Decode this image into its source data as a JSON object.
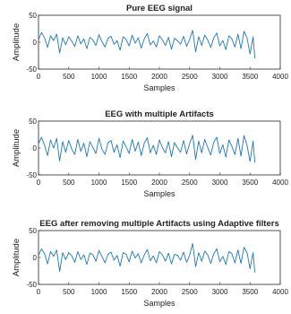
{
  "chart_data": [
    {
      "type": "line",
      "title": "Pure EEG signal",
      "xlabel": "Samples",
      "ylabel": "Amplitude",
      "xlim": [
        0,
        4000
      ],
      "ylim": [
        -50,
        50
      ],
      "xticks": [
        "0",
        "500",
        "1000",
        "1500",
        "2000",
        "2500",
        "3000",
        "3500",
        "4000"
      ],
      "yticks": [
        "50",
        "0",
        "-50"
      ],
      "grid": false,
      "series": [
        {
          "color": "#1f77b4",
          "x": [
            0,
            50,
            100,
            150,
            200,
            250,
            300,
            350,
            400,
            450,
            500,
            550,
            600,
            650,
            700,
            750,
            800,
            850,
            900,
            950,
            1000,
            1050,
            1100,
            1150,
            1200,
            1250,
            1300,
            1350,
            1400,
            1450,
            1500,
            1550,
            1600,
            1650,
            1700,
            1750,
            1800,
            1850,
            1900,
            1950,
            2000,
            2050,
            2100,
            2150,
            2200,
            2250,
            2300,
            2350,
            2400,
            2450,
            2500,
            2550,
            2600,
            2650,
            2700,
            2750,
            2800,
            2850,
            2900,
            2950,
            3000,
            3050,
            3100,
            3150,
            3200,
            3250,
            3300,
            3350,
            3400,
            3450,
            3500,
            3550,
            3580
          ],
          "y": [
            5,
            18,
            8,
            -10,
            12,
            3,
            15,
            -20,
            8,
            -5,
            10,
            2,
            -8,
            12,
            -3,
            6,
            -12,
            9,
            4,
            -6,
            14,
            1,
            -9,
            7,
            11,
            -4,
            3,
            -15,
            10,
            5,
            -7,
            13,
            -2,
            8,
            -11,
            6,
            16,
            -5,
            2,
            -9,
            12,
            4,
            -6,
            9,
            -13,
            7,
            3,
            -4,
            11,
            -8,
            5,
            22,
            -18,
            10,
            -6,
            13,
            4,
            -10,
            8,
            17,
            -7,
            3,
            -14,
            12,
            6,
            -9,
            15,
            -12,
            20,
            8,
            -22,
            10,
            -30
          ]
        }
      ]
    },
    {
      "type": "line",
      "title": "EEG with multiple Artifacts",
      "xlabel": "Samples",
      "ylabel": "Amplitude",
      "xlim": [
        0,
        4000
      ],
      "ylim": [
        -50,
        50
      ],
      "xticks": [
        "0",
        "500",
        "1000",
        "1500",
        "2000",
        "2500",
        "3000",
        "3500",
        "4000"
      ],
      "yticks": [
        "50",
        "0",
        "-50"
      ],
      "grid": false,
      "series": [
        {
          "color": "#1f77b4",
          "x": [
            0,
            50,
            100,
            150,
            200,
            250,
            300,
            350,
            400,
            450,
            500,
            550,
            600,
            650,
            700,
            750,
            800,
            850,
            900,
            950,
            1000,
            1050,
            1100,
            1150,
            1200,
            1250,
            1300,
            1350,
            1400,
            1450,
            1500,
            1550,
            1600,
            1650,
            1700,
            1750,
            1800,
            1850,
            1900,
            1950,
            2000,
            2050,
            2100,
            2150,
            2200,
            2250,
            2300,
            2350,
            2400,
            2450,
            2500,
            2550,
            2600,
            2650,
            2700,
            2750,
            2800,
            2850,
            2900,
            2950,
            3000,
            3050,
            3100,
            3150,
            3200,
            3250,
            3300,
            3350,
            3400,
            3450,
            3500,
            3550,
            3580
          ],
          "y": [
            8,
            20,
            5,
            -14,
            15,
            0,
            18,
            -24,
            12,
            -8,
            14,
            -2,
            -12,
            16,
            -6,
            9,
            -16,
            12,
            1,
            -10,
            18,
            -2,
            -12,
            10,
            14,
            -8,
            6,
            -18,
            13,
            2,
            -10,
            16,
            -6,
            11,
            -14,
            9,
            19,
            -9,
            5,
            -12,
            15,
            1,
            -9,
            12,
            -16,
            10,
            0,
            -8,
            14,
            -11,
            8,
            24,
            -21,
            13,
            -9,
            16,
            1,
            -13,
            11,
            20,
            -10,
            6,
            -17,
            15,
            3,
            -12,
            18,
            -15,
            23,
            5,
            -25,
            13,
            -27
          ]
        }
      ]
    },
    {
      "type": "line",
      "title": "EEG after removing  multiple Artifacts using Adaptive filters",
      "xlabel": "Samples",
      "ylabel": "Amplitude",
      "xlim": [
        0,
        4000
      ],
      "ylim": [
        -50,
        50
      ],
      "xticks": [
        "0",
        "500",
        "1000",
        "1500",
        "2000",
        "2500",
        "3000",
        "3500",
        "4000"
      ],
      "yticks": [
        "50",
        "0",
        "-50"
      ],
      "grid": false,
      "series": [
        {
          "color": "#1f77b4",
          "x": [
            0,
            50,
            100,
            150,
            200,
            250,
            300,
            350,
            400,
            450,
            500,
            550,
            600,
            650,
            700,
            750,
            800,
            850,
            900,
            950,
            1000,
            1050,
            1100,
            1150,
            1200,
            1250,
            1300,
            1350,
            1400,
            1450,
            1500,
            1550,
            1600,
            1650,
            1700,
            1750,
            1800,
            1850,
            1900,
            1950,
            2000,
            2050,
            2100,
            2150,
            2200,
            2250,
            2300,
            2350,
            2400,
            2450,
            2500,
            2550,
            2600,
            2650,
            2700,
            2750,
            2800,
            2850,
            2900,
            2950,
            3000,
            3050,
            3100,
            3150,
            3200,
            3250,
            3300,
            3350,
            3400,
            3450,
            3500,
            3550,
            3580
          ],
          "y": [
            4,
            16,
            7,
            -12,
            11,
            2,
            14,
            -26,
            9,
            -4,
            9,
            3,
            -9,
            11,
            -4,
            5,
            -13,
            8,
            5,
            -7,
            13,
            2,
            -10,
            6,
            10,
            -5,
            4,
            -16,
            9,
            6,
            -8,
            12,
            -1,
            7,
            -10,
            5,
            15,
            -6,
            3,
            -10,
            11,
            5,
            -7,
            8,
            -12,
            6,
            4,
            -5,
            10,
            -9,
            4,
            26,
            -17,
            9,
            -7,
            12,
            5,
            -11,
            7,
            16,
            -8,
            2,
            -13,
            11,
            7,
            -10,
            14,
            -11,
            19,
            9,
            -21,
            9,
            -28
          ]
        }
      ]
    }
  ]
}
